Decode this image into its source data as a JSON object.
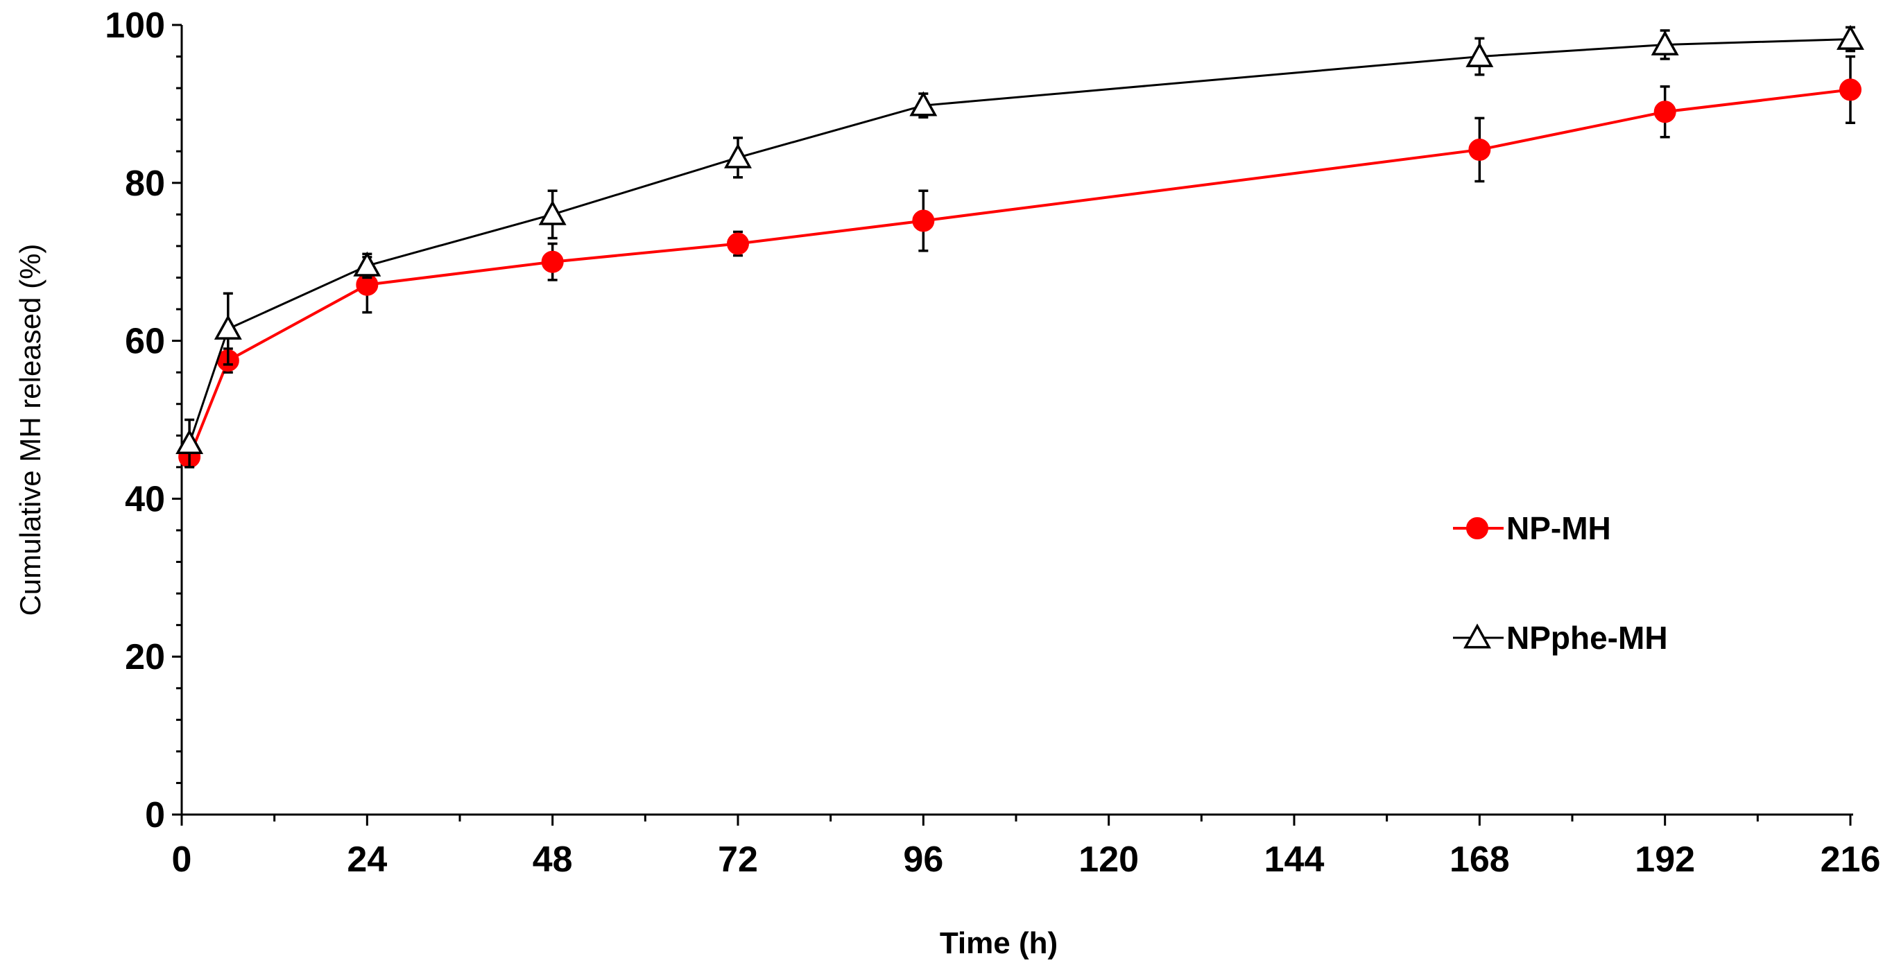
{
  "chart_data": {
    "type": "line",
    "title": "",
    "xlabel": "Time (h)",
    "ylabel": "Cumulative MH released (%)",
    "xlim": [
      0,
      216
    ],
    "ylim": [
      0,
      100
    ],
    "xticks": [
      "0",
      "24",
      "48",
      "72",
      "96",
      "120",
      "144",
      "168",
      "192",
      "216"
    ],
    "yticks": [
      "0",
      "20",
      "40",
      "60",
      "80",
      "100"
    ],
    "legend_position": "right-middle",
    "series": [
      {
        "name": "NP-MH",
        "color": "#ff0000",
        "marker": "circle",
        "x": [
          1,
          6,
          24,
          48,
          72,
          96,
          168,
          192,
          216
        ],
        "values": [
          45.3,
          57.5,
          67.1,
          70.0,
          72.3,
          75.2,
          84.2,
          89.0,
          91.8
        ],
        "errors": [
          1.2,
          1.5,
          3.5,
          2.3,
          1.5,
          3.8,
          4.0,
          3.2,
          4.2
        ]
      },
      {
        "name": "NPphe-MH",
        "color": "#000000",
        "marker": "open-triangle",
        "x": [
          1,
          6,
          24,
          48,
          72,
          96,
          168,
          192,
          216
        ],
        "values": [
          47.0,
          61.5,
          69.5,
          76.0,
          83.2,
          89.8,
          96.0,
          97.5,
          98.2
        ],
        "errors": [
          3.0,
          4.5,
          1.5,
          3.0,
          2.5,
          1.5,
          2.3,
          1.8,
          1.5
        ]
      }
    ]
  }
}
